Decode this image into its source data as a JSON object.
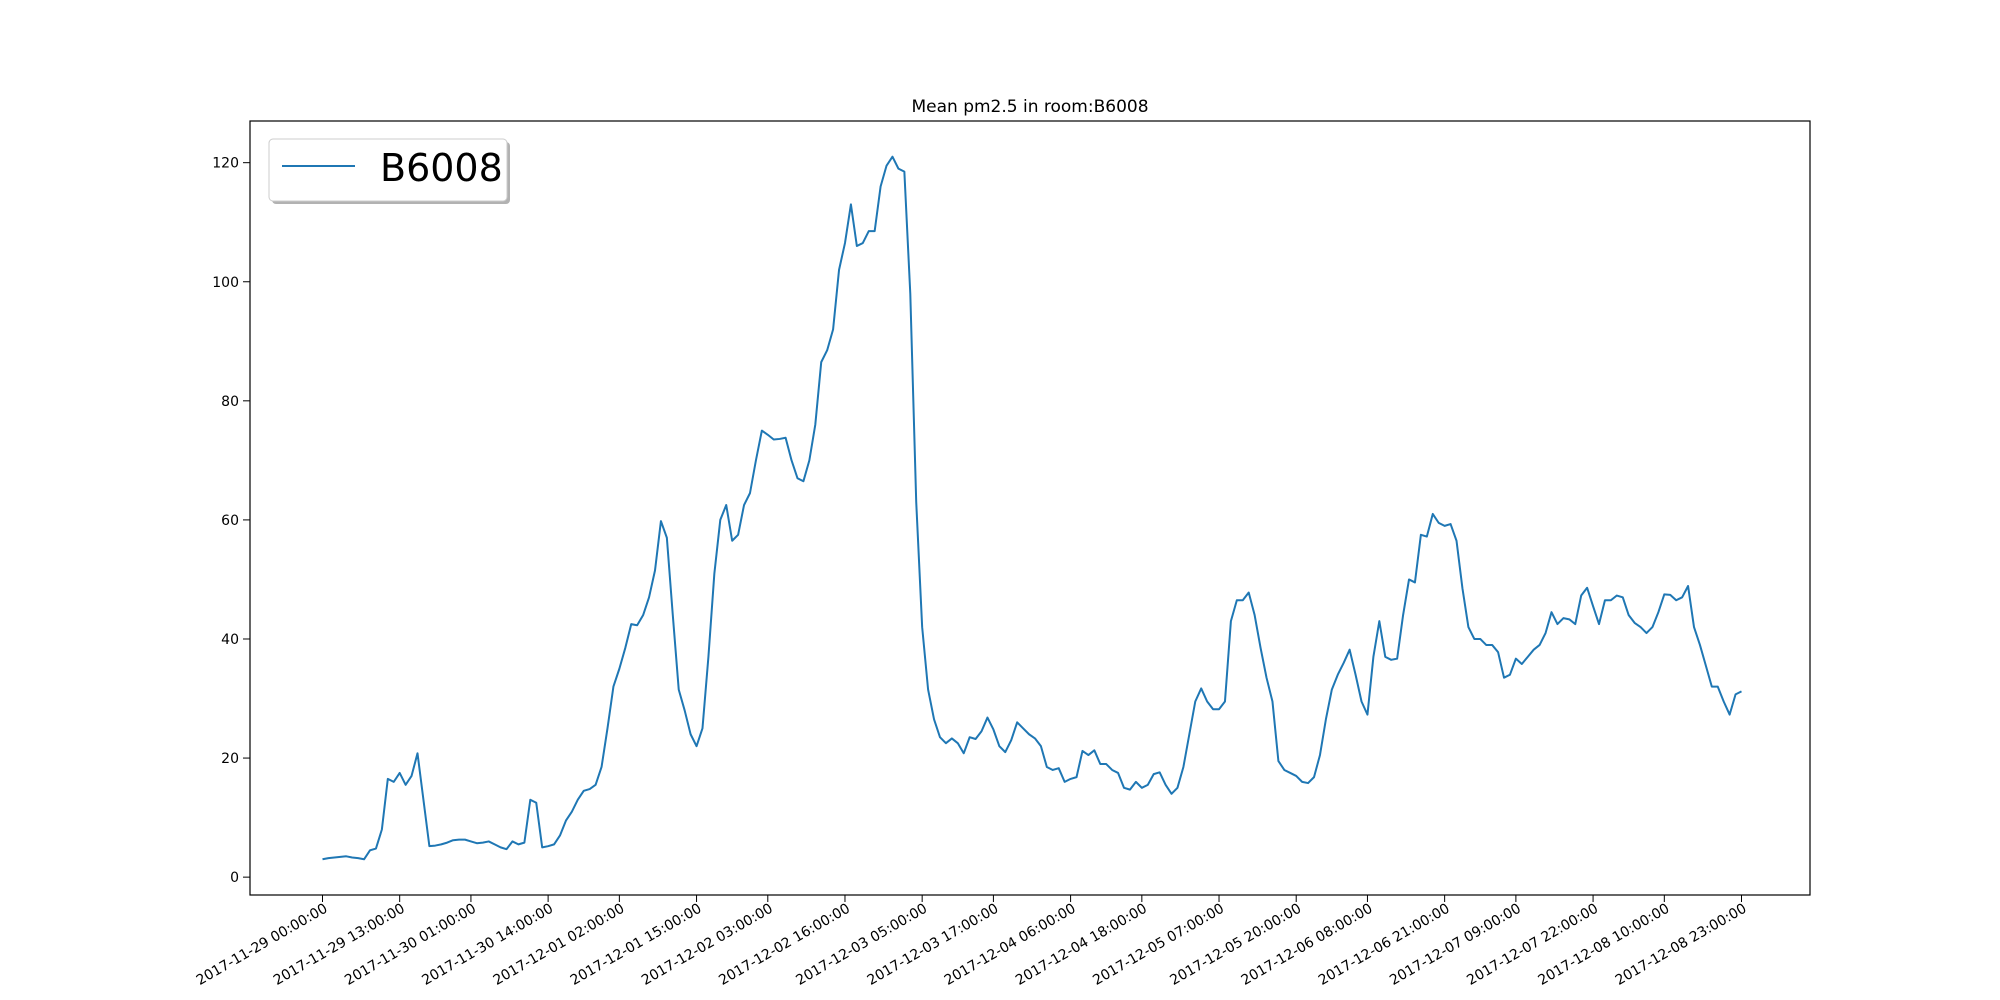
{
  "chart_data": {
    "type": "line",
    "title": "Mean pm2.5 in room:B6008",
    "xlabel": "",
    "ylabel": "",
    "ylim": [
      -3,
      127
    ],
    "yticks": [
      0,
      20,
      40,
      60,
      80,
      100,
      120
    ],
    "x_ticks": [
      {
        "i": 0,
        "label": "2017-11-29 00:00:00"
      },
      {
        "i": 13,
        "label": "2017-11-29 13:00:00"
      },
      {
        "i": 25,
        "label": "2017-11-30 01:00:00"
      },
      {
        "i": 38,
        "label": "2017-11-30 14:00:00"
      },
      {
        "i": 50,
        "label": "2017-12-01 02:00:00"
      },
      {
        "i": 63,
        "label": "2017-12-01 15:00:00"
      },
      {
        "i": 75,
        "label": "2017-12-02 03:00:00"
      },
      {
        "i": 88,
        "label": "2017-12-02 16:00:00"
      },
      {
        "i": 101,
        "label": "2017-12-03 05:00:00"
      },
      {
        "i": 113,
        "label": "2017-12-03 17:00:00"
      },
      {
        "i": 126,
        "label": "2017-12-04 06:00:00"
      },
      {
        "i": 138,
        "label": "2017-12-04 18:00:00"
      },
      {
        "i": 151,
        "label": "2017-12-05 07:00:00"
      },
      {
        "i": 164,
        "label": "2017-12-05 20:00:00"
      },
      {
        "i": 176,
        "label": "2017-12-06 08:00:00"
      },
      {
        "i": 189,
        "label": "2017-12-06 21:00:00"
      },
      {
        "i": 201,
        "label": "2017-12-07 09:00:00"
      },
      {
        "i": 214,
        "label": "2017-12-07 22:00:00"
      },
      {
        "i": 226,
        "label": "2017-12-08 10:00:00"
      },
      {
        "i": 239,
        "label": "2017-12-08 23:00:00"
      }
    ],
    "legend": "upper-left",
    "grid": false,
    "series": [
      {
        "name": "B6008",
        "color": "#1f77b4",
        "values": [
          3.0,
          3.2,
          3.3,
          3.4,
          3.5,
          3.3,
          3.2,
          3.0,
          4.5,
          4.8,
          8.0,
          16.5,
          16.0,
          17.5,
          15.5,
          17.0,
          20.8,
          13.0,
          5.2,
          5.3,
          5.5,
          5.8,
          6.2,
          6.3,
          6.3,
          6.0,
          5.7,
          5.8,
          6.0,
          5.5,
          5.0,
          4.7,
          6.0,
          5.5,
          5.8,
          13.0,
          12.5,
          5.0,
          5.2,
          5.5,
          7.0,
          9.5,
          11.0,
          13.0,
          14.5,
          14.8,
          15.5,
          18.5,
          25.0,
          32.0,
          35.0,
          38.5,
          42.5,
          42.3,
          44.0,
          47.0,
          51.5,
          59.8,
          57.0,
          44.0,
          31.5,
          28.0,
          24.0,
          22.0,
          25.0,
          37.0,
          51.0,
          60.0,
          62.5,
          56.5,
          57.5,
          62.5,
          64.5,
          70.0,
          75.0,
          74.3,
          73.5,
          73.6,
          73.8,
          70.0,
          67.0,
          66.5,
          70.0,
          76.0,
          86.5,
          88.5,
          92.0,
          102.0,
          106.5,
          113.0,
          106.0,
          106.5,
          108.5,
          108.5,
          116.0,
          119.5,
          121.0,
          119.0,
          118.5,
          98.0,
          63.0,
          42.0,
          31.5,
          26.5,
          23.5,
          22.5,
          23.3,
          22.5,
          20.8,
          23.5,
          23.2,
          24.5,
          26.8,
          24.8,
          22.0,
          21.0,
          23.0,
          26.0,
          25.0,
          24.0,
          23.3,
          22.0,
          18.5,
          18.0,
          18.3,
          16.0,
          16.5,
          16.8,
          21.2,
          20.5,
          21.3,
          19.0,
          19.0,
          18.0,
          17.5,
          15.0,
          14.7,
          16.0,
          15.0,
          15.5,
          17.3,
          17.6,
          15.5,
          14.0,
          15.0,
          18.5,
          24.0,
          29.5,
          31.7,
          29.5,
          28.2,
          28.2,
          29.5,
          43.0,
          46.5,
          46.5,
          47.8,
          44.0,
          38.5,
          33.5,
          29.5,
          19.5,
          18.0,
          17.5,
          17.0,
          16.0,
          15.8,
          16.8,
          20.5,
          26.5,
          31.5,
          34.0,
          36.0,
          38.2,
          34.0,
          29.5,
          27.3,
          37.0,
          43.0,
          37.0,
          36.5,
          36.7,
          44.0,
          50.0,
          49.5,
          57.5,
          57.2,
          61.0,
          59.5,
          59.0,
          59.3,
          56.5,
          48.5,
          42.0,
          40.0,
          40.0,
          39.0,
          39.0,
          37.8,
          33.5,
          34.0,
          36.7,
          35.8,
          37.0,
          38.2,
          39.0,
          41.0,
          44.5,
          42.5,
          43.5,
          43.3,
          42.5,
          47.3,
          48.6,
          45.5,
          42.5,
          46.5,
          46.5,
          47.3,
          47.0,
          44.0,
          42.7,
          42.0,
          41.0,
          42.0,
          44.5,
          47.5,
          47.4,
          46.5,
          47.0,
          48.9,
          42.0,
          39.0,
          35.5,
          32.0,
          32.0,
          29.5,
          27.3,
          30.7,
          31.2
        ]
      }
    ]
  }
}
